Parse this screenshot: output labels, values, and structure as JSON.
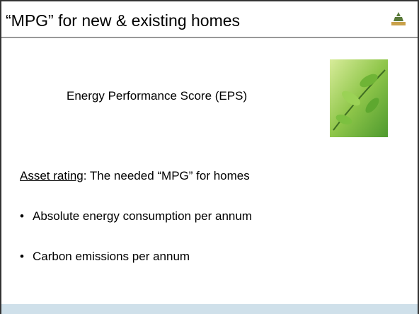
{
  "slide": {
    "title": "“MPG” for new & existing homes",
    "subtitle": "Energy Performance Score (EPS)",
    "asset_rating": {
      "label": "Asset rating",
      "text": ": The needed “MPG” for homes"
    },
    "bullets": [
      "Absolute energy consumption per annum",
      "Carbon emissions per annum"
    ]
  }
}
